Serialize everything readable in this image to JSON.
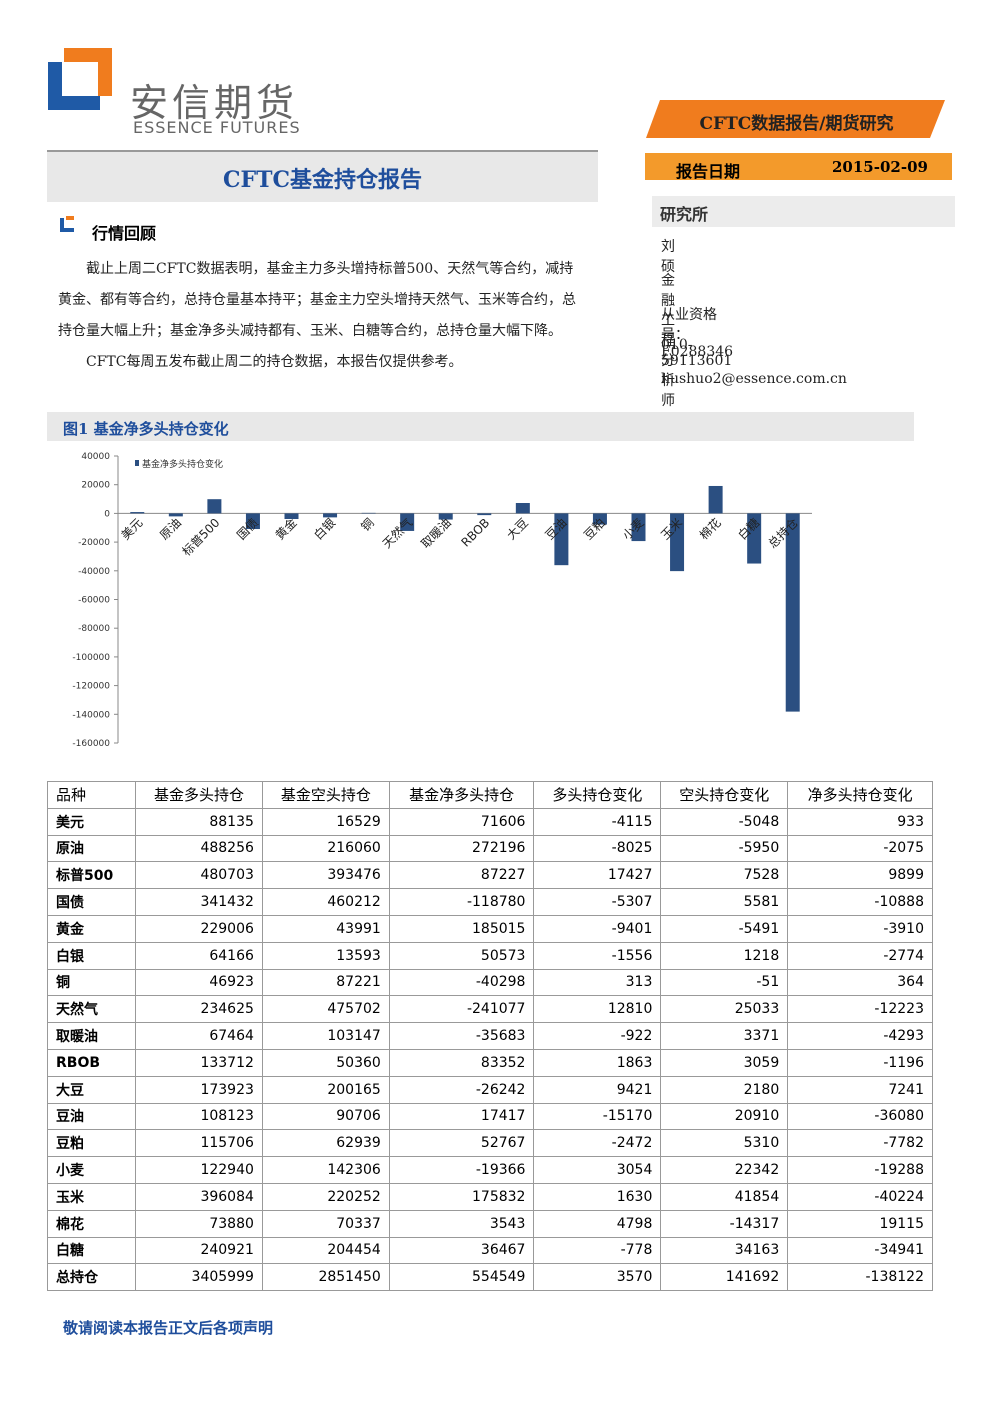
{
  "header": {
    "logo_cn": "安信期货",
    "logo_en": "ESSENCE FUTURES",
    "tag": "CFTC数据报告/期货研究",
    "title": "CFTC基金持仓报告"
  },
  "report_date": {
    "label": "报告日期",
    "value": "2015-02-09"
  },
  "sidebar": {
    "heading": "研究所",
    "lines": [
      "刘硕",
      "金融工程分析师",
      "从业资格号：F0288346",
      "010-59113601",
      "liushuo2@essence.com.cn"
    ]
  },
  "section": {
    "heading": "行情回顾",
    "paragraphs": [
      "截止上周二CFTC数据表明，基金主力多头增持标普500、天然气等合约，减持黄金、都有等合约，总持仓量基本持平；基金主力空头增持天然气、玉米等合约，总持仓量大幅上升；基金净多头减持都有、玉米、白糖等合约，总持仓量大幅下降。",
      "CFTC每周五发布截止周二的持仓数据，本报告仅提供参考。"
    ]
  },
  "chart_data": {
    "type": "bar",
    "title": "图1 基金净多头持仓变化",
    "categories": [
      "美元",
      "原油",
      "标普500",
      "国债",
      "黄金",
      "白银",
      "铜",
      "天然气",
      "取暖油",
      "RBOB",
      "大豆",
      "豆油",
      "豆粕",
      "小麦",
      "玉米",
      "棉花",
      "白糖",
      "总持仓"
    ],
    "series": [
      {
        "name": "基金净多头持仓变化",
        "color": "#2b4f81",
        "values": [
          933,
          -2075,
          9899,
          -10888,
          -3910,
          -2774,
          364,
          -12223,
          -4293,
          -1196,
          7241,
          -36080,
          -7782,
          -19288,
          -40224,
          19115,
          -34941,
          -138122
        ]
      }
    ],
    "ylim": [
      -160000,
      40000
    ],
    "yticks": [
      -160000,
      -140000,
      -120000,
      -100000,
      -80000,
      -60000,
      -40000,
      -20000,
      0,
      20000,
      40000
    ],
    "grid": false,
    "legend": "top-left"
  },
  "table": {
    "header": [
      "品种",
      "基金多头持仓",
      "基金空头持仓",
      "基金净多头持仓",
      "多头持仓变化",
      "空头持仓变化",
      "净多头持仓变化"
    ],
    "rows": [
      [
        "美元",
        88135,
        16529,
        71606,
        -4115,
        -5048,
        933
      ],
      [
        "原油",
        488256,
        216060,
        272196,
        -8025,
        -5950,
        -2075
      ],
      [
        "标普500",
        480703,
        393476,
        87227,
        17427,
        7528,
        9899
      ],
      [
        "国债",
        341432,
        460212,
        -118780,
        -5307,
        5581,
        -10888
      ],
      [
        "黄金",
        229006,
        43991,
        185015,
        -9401,
        -5491,
        -3910
      ],
      [
        "白银",
        64166,
        13593,
        50573,
        -1556,
        1218,
        -2774
      ],
      [
        "铜",
        46923,
        87221,
        -40298,
        313,
        -51,
        364
      ],
      [
        "天然气",
        234625,
        475702,
        -241077,
        12810,
        25033,
        -12223
      ],
      [
        "取暖油",
        67464,
        103147,
        -35683,
        -922,
        3371,
        -4293
      ],
      [
        "RBOB",
        133712,
        50360,
        83352,
        1863,
        3059,
        -1196
      ],
      [
        "大豆",
        173923,
        200165,
        -26242,
        9421,
        2180,
        7241
      ],
      [
        "豆油",
        108123,
        90706,
        17417,
        -15170,
        20910,
        -36080
      ],
      [
        "豆粕",
        115706,
        62939,
        52767,
        -2472,
        5310,
        -7782
      ],
      [
        "小麦",
        122940,
        142306,
        -19366,
        3054,
        22342,
        -19288
      ],
      [
        "玉米",
        396084,
        220252,
        175832,
        1630,
        41854,
        -40224
      ],
      [
        "棉花",
        73880,
        70337,
        3543,
        4798,
        -14317,
        19115
      ],
      [
        "白糖",
        240921,
        204454,
        36467,
        -778,
        34163,
        -34941
      ],
      [
        "总持仓",
        3405999,
        2851450,
        554549,
        3570,
        141692,
        -138122
      ]
    ]
  },
  "footer": "敬请阅读本报告正文后各项声明"
}
